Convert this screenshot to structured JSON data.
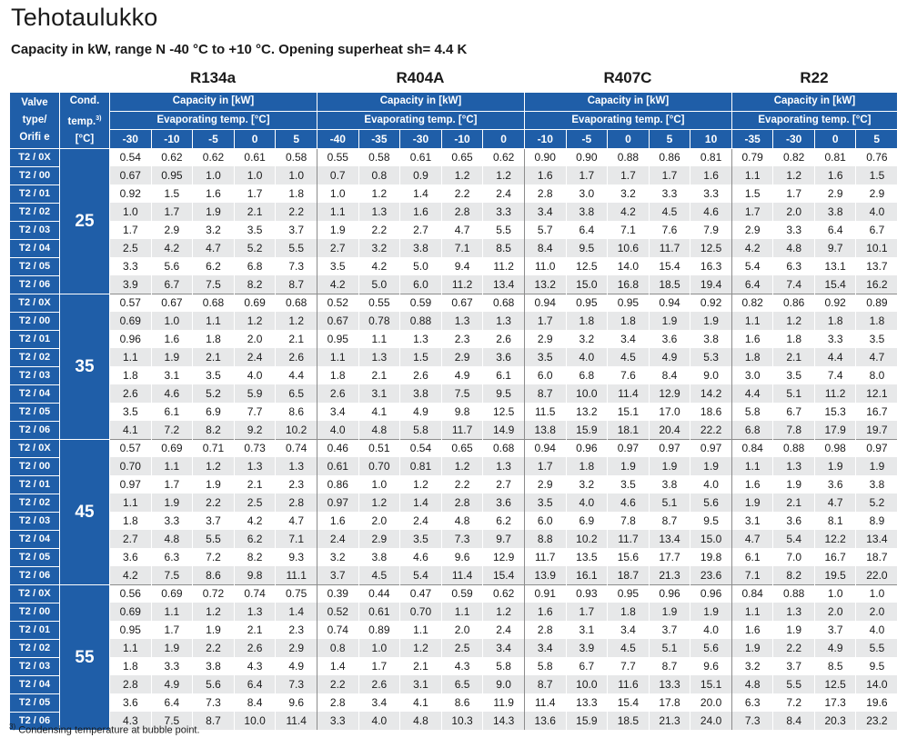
{
  "title": "Tehotaulukko",
  "subtitle": "Capacity in kW, range N -40 °C to +10 °C. Opening superheat sh= 4.4 K",
  "header": {
    "valve_type": [
      "Valve",
      "type/",
      "Orifi e"
    ],
    "cond_temp": [
      "Cond.",
      "temp.",
      "3)",
      "[°C]"
    ],
    "capacity": "Capacity in [kW]",
    "evaporating": "Evaporating temp. [°C]"
  },
  "refrigerants": [
    {
      "name": "R134a",
      "temps": [
        "-30",
        "-10",
        "-5",
        "0",
        "5"
      ]
    },
    {
      "name": "R404A",
      "temps": [
        "-40",
        "-35",
        "-30",
        "-10",
        "0"
      ]
    },
    {
      "name": "R407C",
      "temps": [
        "-10",
        "-5",
        "0",
        "5",
        "10"
      ]
    },
    {
      "name": "R22",
      "temps": [
        "-35",
        "-30",
        "0",
        "5"
      ]
    }
  ],
  "groups": [
    {
      "cond": "25",
      "rows": [
        {
          "valve": "T2 / 0X",
          "values": [
            "0.54",
            "0.62",
            "0.62",
            "0.61",
            "0.58",
            "0.55",
            "0.58",
            "0.61",
            "0.65",
            "0.62",
            "0.90",
            "0.90",
            "0.88",
            "0.86",
            "0.81",
            "0.79",
            "0.82",
            "0.81",
            "0.76"
          ]
        },
        {
          "valve": "T2 / 00",
          "values": [
            "0.67",
            "0.95",
            "1.0",
            "1.0",
            "1.0",
            "0.7",
            "0.8",
            "0.9",
            "1.2",
            "1.2",
            "1.6",
            "1.7",
            "1.7",
            "1.7",
            "1.6",
            "1.1",
            "1.2",
            "1.6",
            "1.5"
          ]
        },
        {
          "valve": "T2 / 01",
          "values": [
            "0.92",
            "1.5",
            "1.6",
            "1.7",
            "1.8",
            "1.0",
            "1.2",
            "1.4",
            "2.2",
            "2.4",
            "2.8",
            "3.0",
            "3.2",
            "3.3",
            "3.3",
            "1.5",
            "1.7",
            "2.9",
            "2.9"
          ]
        },
        {
          "valve": "T2 / 02",
          "values": [
            "1.0",
            "1.7",
            "1.9",
            "2.1",
            "2.2",
            "1.1",
            "1.3",
            "1.6",
            "2.8",
            "3.3",
            "3.4",
            "3.8",
            "4.2",
            "4.5",
            "4.6",
            "1.7",
            "2.0",
            "3.8",
            "4.0"
          ]
        },
        {
          "valve": "T2 / 03",
          "values": [
            "1.7",
            "2.9",
            "3.2",
            "3.5",
            "3.7",
            "1.9",
            "2.2",
            "2.7",
            "4.7",
            "5.5",
            "5.7",
            "6.4",
            "7.1",
            "7.6",
            "7.9",
            "2.9",
            "3.3",
            "6.4",
            "6.7"
          ]
        },
        {
          "valve": "T2 / 04",
          "values": [
            "2.5",
            "4.2",
            "4.7",
            "5.2",
            "5.5",
            "2.7",
            "3.2",
            "3.8",
            "7.1",
            "8.5",
            "8.4",
            "9.5",
            "10.6",
            "11.7",
            "12.5",
            "4.2",
            "4.8",
            "9.7",
            "10.1"
          ]
        },
        {
          "valve": "T2 / 05",
          "values": [
            "3.3",
            "5.6",
            "6.2",
            "6.8",
            "7.3",
            "3.5",
            "4.2",
            "5.0",
            "9.4",
            "11.2",
            "11.0",
            "12.5",
            "14.0",
            "15.4",
            "16.3",
            "5.4",
            "6.3",
            "13.1",
            "13.7"
          ]
        },
        {
          "valve": "T2 / 06",
          "values": [
            "3.9",
            "6.7",
            "7.5",
            "8.2",
            "8.7",
            "4.2",
            "5.0",
            "6.0",
            "11.2",
            "13.4",
            "13.2",
            "15.0",
            "16.8",
            "18.5",
            "19.4",
            "6.4",
            "7.4",
            "15.4",
            "16.2"
          ]
        }
      ]
    },
    {
      "cond": "35",
      "rows": [
        {
          "valve": "T2 / 0X",
          "values": [
            "0.57",
            "0.67",
            "0.68",
            "0.69",
            "0.68",
            "0.52",
            "0.55",
            "0.59",
            "0.67",
            "0.68",
            "0.94",
            "0.95",
            "0.95",
            "0.94",
            "0.92",
            "0.82",
            "0.86",
            "0.92",
            "0.89"
          ]
        },
        {
          "valve": "T2 / 00",
          "values": [
            "0.69",
            "1.0",
            "1.1",
            "1.2",
            "1.2",
            "0.67",
            "0.78",
            "0.88",
            "1.3",
            "1.3",
            "1.7",
            "1.8",
            "1.8",
            "1.9",
            "1.9",
            "1.1",
            "1.2",
            "1.8",
            "1.8"
          ]
        },
        {
          "valve": "T2 / 01",
          "values": [
            "0.96",
            "1.6",
            "1.8",
            "2.0",
            "2.1",
            "0.95",
            "1.1",
            "1.3",
            "2.3",
            "2.6",
            "2.9",
            "3.2",
            "3.4",
            "3.6",
            "3.8",
            "1.6",
            "1.8",
            "3.3",
            "3.5"
          ]
        },
        {
          "valve": "T2 / 02",
          "values": [
            "1.1",
            "1.9",
            "2.1",
            "2.4",
            "2.6",
            "1.1",
            "1.3",
            "1.5",
            "2.9",
            "3.6",
            "3.5",
            "4.0",
            "4.5",
            "4.9",
            "5.3",
            "1.8",
            "2.1",
            "4.4",
            "4.7"
          ]
        },
        {
          "valve": "T2 / 03",
          "values": [
            "1.8",
            "3.1",
            "3.5",
            "4.0",
            "4.4",
            "1.8",
            "2.1",
            "2.6",
            "4.9",
            "6.1",
            "6.0",
            "6.8",
            "7.6",
            "8.4",
            "9.0",
            "3.0",
            "3.5",
            "7.4",
            "8.0"
          ]
        },
        {
          "valve": "T2 / 04",
          "values": [
            "2.6",
            "4.6",
            "5.2",
            "5.9",
            "6.5",
            "2.6",
            "3.1",
            "3.8",
            "7.5",
            "9.5",
            "8.7",
            "10.0",
            "11.4",
            "12.9",
            "14.2",
            "4.4",
            "5.1",
            "11.2",
            "12.1"
          ]
        },
        {
          "valve": "T2 / 05",
          "values": [
            "3.5",
            "6.1",
            "6.9",
            "7.7",
            "8.6",
            "3.4",
            "4.1",
            "4.9",
            "9.8",
            "12.5",
            "11.5",
            "13.2",
            "15.1",
            "17.0",
            "18.6",
            "5.8",
            "6.7",
            "15.3",
            "16.7"
          ]
        },
        {
          "valve": "T2 / 06",
          "values": [
            "4.1",
            "7.2",
            "8.2",
            "9.2",
            "10.2",
            "4.0",
            "4.8",
            "5.8",
            "11.7",
            "14.9",
            "13.8",
            "15.9",
            "18.1",
            "20.4",
            "22.2",
            "6.8",
            "7.8",
            "17.9",
            "19.7"
          ]
        }
      ]
    },
    {
      "cond": "45",
      "rows": [
        {
          "valve": "T2 / 0X",
          "values": [
            "0.57",
            "0.69",
            "0.71",
            "0.73",
            "0.74",
            "0.46",
            "0.51",
            "0.54",
            "0.65",
            "0.68",
            "0.94",
            "0.96",
            "0.97",
            "0.97",
            "0.97",
            "0.84",
            "0.88",
            "0.98",
            "0.97"
          ]
        },
        {
          "valve": "T2 / 00",
          "values": [
            "0.70",
            "1.1",
            "1.2",
            "1.3",
            "1.3",
            "0.61",
            "0.70",
            "0.81",
            "1.2",
            "1.3",
            "1.7",
            "1.8",
            "1.9",
            "1.9",
            "1.9",
            "1.1",
            "1.3",
            "1.9",
            "1.9"
          ]
        },
        {
          "valve": "T2 / 01",
          "values": [
            "0.97",
            "1.7",
            "1.9",
            "2.1",
            "2.3",
            "0.86",
            "1.0",
            "1.2",
            "2.2",
            "2.7",
            "2.9",
            "3.2",
            "3.5",
            "3.8",
            "4.0",
            "1.6",
            "1.9",
            "3.6",
            "3.8"
          ]
        },
        {
          "valve": "T2 / 02",
          "values": [
            "1.1",
            "1.9",
            "2.2",
            "2.5",
            "2.8",
            "0.97",
            "1.2",
            "1.4",
            "2.8",
            "3.6",
            "3.5",
            "4.0",
            "4.6",
            "5.1",
            "5.6",
            "1.9",
            "2.1",
            "4.7",
            "5.2"
          ]
        },
        {
          "valve": "T2 / 03",
          "values": [
            "1.8",
            "3.3",
            "3.7",
            "4.2",
            "4.7",
            "1.6",
            "2.0",
            "2.4",
            "4.8",
            "6.2",
            "6.0",
            "6.9",
            "7.8",
            "8.7",
            "9.5",
            "3.1",
            "3.6",
            "8.1",
            "8.9"
          ]
        },
        {
          "valve": "T2 / 04",
          "values": [
            "2.7",
            "4.8",
            "5.5",
            "6.2",
            "7.1",
            "2.4",
            "2.9",
            "3.5",
            "7.3",
            "9.7",
            "8.8",
            "10.2",
            "11.7",
            "13.4",
            "15.0",
            "4.7",
            "5.4",
            "12.2",
            "13.4"
          ]
        },
        {
          "valve": "T2 / 05",
          "values": [
            "3.6",
            "6.3",
            "7.2",
            "8.2",
            "9.3",
            "3.2",
            "3.8",
            "4.6",
            "9.6",
            "12.9",
            "11.7",
            "13.5",
            "15.6",
            "17.7",
            "19.8",
            "6.1",
            "7.0",
            "16.7",
            "18.7"
          ]
        },
        {
          "valve": "T2 / 06",
          "values": [
            "4.2",
            "7.5",
            "8.6",
            "9.8",
            "11.1",
            "3.7",
            "4.5",
            "5.4",
            "11.4",
            "15.4",
            "13.9",
            "16.1",
            "18.7",
            "21.3",
            "23.6",
            "7.1",
            "8.2",
            "19.5",
            "22.0"
          ]
        }
      ]
    },
    {
      "cond": "55",
      "rows": [
        {
          "valve": "T2 / 0X",
          "values": [
            "0.56",
            "0.69",
            "0.72",
            "0.74",
            "0.75",
            "0.39",
            "0.44",
            "0.47",
            "0.59",
            "0.62",
            "0.91",
            "0.93",
            "0.95",
            "0.96",
            "0.96",
            "0.84",
            "0.88",
            "1.0",
            "1.0"
          ]
        },
        {
          "valve": "T2 / 00",
          "values": [
            "0.69",
            "1.1",
            "1.2",
            "1.3",
            "1.4",
            "0.52",
            "0.61",
            "0.70",
            "1.1",
            "1.2",
            "1.6",
            "1.7",
            "1.8",
            "1.9",
            "1.9",
            "1.1",
            "1.3",
            "2.0",
            "2.0"
          ]
        },
        {
          "valve": "T2 / 01",
          "values": [
            "0.95",
            "1.7",
            "1.9",
            "2.1",
            "2.3",
            "0.74",
            "0.89",
            "1.1",
            "2.0",
            "2.4",
            "2.8",
            "3.1",
            "3.4",
            "3.7",
            "4.0",
            "1.6",
            "1.9",
            "3.7",
            "4.0"
          ]
        },
        {
          "valve": "T2 / 02",
          "values": [
            "1.1",
            "1.9",
            "2.2",
            "2.6",
            "2.9",
            "0.8",
            "1.0",
            "1.2",
            "2.5",
            "3.4",
            "3.4",
            "3.9",
            "4.5",
            "5.1",
            "5.6",
            "1.9",
            "2.2",
            "4.9",
            "5.5"
          ]
        },
        {
          "valve": "T2 / 03",
          "values": [
            "1.8",
            "3.3",
            "3.8",
            "4.3",
            "4.9",
            "1.4",
            "1.7",
            "2.1",
            "4.3",
            "5.8",
            "5.8",
            "6.7",
            "7.7",
            "8.7",
            "9.6",
            "3.2",
            "3.7",
            "8.5",
            "9.5"
          ]
        },
        {
          "valve": "T2 / 04",
          "values": [
            "2.8",
            "4.9",
            "5.6",
            "6.4",
            "7.3",
            "2.2",
            "2.6",
            "3.1",
            "6.5",
            "9.0",
            "8.7",
            "10.0",
            "11.6",
            "13.3",
            "15.1",
            "4.8",
            "5.5",
            "12.5",
            "14.0"
          ]
        },
        {
          "valve": "T2 / 05",
          "values": [
            "3.6",
            "6.4",
            "7.3",
            "8.4",
            "9.6",
            "2.8",
            "3.4",
            "4.1",
            "8.6",
            "11.9",
            "11.4",
            "13.3",
            "15.4",
            "17.8",
            "20.0",
            "6.3",
            "7.2",
            "17.3",
            "19.6"
          ]
        },
        {
          "valve": "T2 / 06",
          "values": [
            "4.3",
            "7.5",
            "8.7",
            "10.0",
            "11.4",
            "3.3",
            "4.0",
            "4.8",
            "10.3",
            "14.3",
            "13.6",
            "15.9",
            "18.5",
            "21.3",
            "24.0",
            "7.3",
            "8.4",
            "20.3",
            "23.2"
          ]
        }
      ]
    }
  ],
  "footnote": {
    "mark": "3)",
    "text": "Condensing temperature at bubble point."
  },
  "colors": {
    "header_blue": "#1f5ea8",
    "row_shade": "#e7e8e9"
  }
}
